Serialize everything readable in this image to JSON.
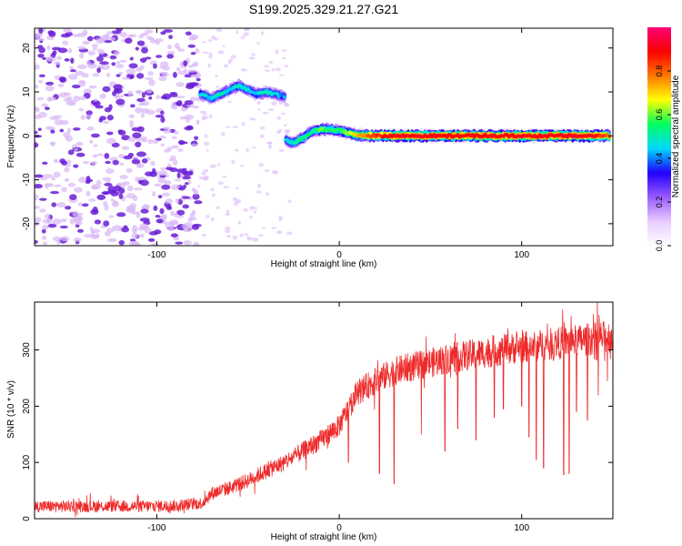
{
  "figure_title": "S199.2025.329.21.27.G21",
  "colors": {
    "snr_line": "#ee2b2b",
    "noise_dark": "#6a1fd6",
    "noise_light": "#d8b8f5",
    "spectrum_stops": [
      "#ffffff",
      "#e8ccff",
      "#9a5bff",
      "#2200ff",
      "#00d8ff",
      "#00ff60",
      "#ffff00",
      "#ff7700",
      "#ff0000",
      "#ff0077"
    ]
  },
  "chart_data": [
    {
      "type": "heatmap",
      "title": "S199.2025.329.21.27.G21",
      "xlabel": "Height of straight line (km)",
      "ylabel": "Frequency (Hz)",
      "xlim": [
        -167,
        150
      ],
      "ylim": [
        -25,
        24.5
      ],
      "x_ticks": [
        -100,
        0,
        100
      ],
      "x_tick_labels": [
        "-100",
        "0",
        "100"
      ],
      "y_ticks": [
        -20,
        -10,
        0,
        10,
        20
      ],
      "y_tick_labels": [
        "-20",
        "-10",
        "0",
        "10",
        "20"
      ],
      "colorbar": {
        "label": "Normalized spectral amplitude",
        "range": [
          0,
          1
        ],
        "ticks": [
          0.0,
          0.2,
          0.4,
          0.6,
          0.8
        ],
        "tick_labels": [
          "0.0",
          "0.2",
          "0.4",
          "0.6",
          "0.8"
        ]
      },
      "signal_track": {
        "x": [
          -76,
          -70,
          -65,
          -60,
          -55,
          -50,
          -45,
          -40,
          -35,
          -30,
          -29,
          -25,
          -20,
          -15,
          -10,
          -5,
          0,
          10,
          20,
          30,
          40,
          50,
          60,
          70,
          80,
          90,
          100,
          110,
          120,
          130,
          140,
          148
        ],
        "y": [
          9.5,
          8.5,
          9.5,
          10.5,
          11.5,
          10.5,
          9.5,
          10.0,
          9.5,
          9.0,
          -1.0,
          -1.5,
          -0.5,
          1.0,
          1.5,
          1.5,
          1.2,
          0.2,
          0,
          0,
          0,
          0,
          0,
          0,
          0,
          0,
          0,
          0,
          0,
          0,
          0,
          0
        ],
        "amplitude": [
          0.45,
          0.45,
          0.5,
          0.45,
          0.5,
          0.45,
          0.45,
          0.5,
          0.45,
          0.4,
          0.45,
          0.5,
          0.55,
          0.5,
          0.6,
          0.55,
          0.55,
          0.7,
          0.85,
          0.9,
          0.9,
          0.9,
          0.9,
          0.9,
          0.9,
          0.9,
          0.9,
          0.9,
          0.9,
          0.9,
          0.9,
          0.8
        ]
      },
      "noise_region_x": [
        -167,
        -77
      ]
    },
    {
      "type": "line",
      "xlabel": "Height of straight line (km)",
      "ylabel": "SNR (10 * v/v)",
      "xlim": [
        -167,
        150
      ],
      "ylim": [
        0,
        385
      ],
      "x_ticks": [
        -100,
        0,
        100
      ],
      "x_tick_labels": [
        "-100",
        "0",
        "100"
      ],
      "y_ticks": [
        0,
        100,
        200,
        300
      ],
      "y_tick_labels": [
        "0",
        "100",
        "200",
        "300"
      ],
      "trend": {
        "x": [
          -167,
          -140,
          -110,
          -90,
          -75,
          -70,
          -60,
          -50,
          -40,
          -30,
          -20,
          -10,
          0,
          10,
          20,
          30,
          40,
          50,
          60,
          70,
          80,
          90,
          100,
          110,
          120,
          130,
          140,
          150
        ],
        "y": [
          22,
          22,
          22,
          23,
          28,
          45,
          55,
          68,
          85,
          100,
          120,
          140,
          165,
          225,
          245,
          262,
          270,
          277,
          285,
          290,
          295,
          300,
          305,
          308,
          312,
          316,
          320,
          325
        ]
      },
      "noise_amplitude": 20,
      "dropouts": [
        {
          "x": 5,
          "y": 100
        },
        {
          "x": 22,
          "y": 80
        },
        {
          "x": 30,
          "y": 62
        },
        {
          "x": 45,
          "y": 150
        },
        {
          "x": 58,
          "y": 120
        },
        {
          "x": 65,
          "y": 160
        },
        {
          "x": 75,
          "y": 140
        },
        {
          "x": 85,
          "y": 180
        },
        {
          "x": 90,
          "y": 195
        },
        {
          "x": 100,
          "y": 200
        },
        {
          "x": 104,
          "y": 145
        },
        {
          "x": 108,
          "y": 105
        },
        {
          "x": 112,
          "y": 90
        },
        {
          "x": 123,
          "y": 78
        },
        {
          "x": 126,
          "y": 80
        },
        {
          "x": 130,
          "y": 190
        },
        {
          "x": 136,
          "y": 175
        },
        {
          "x": 142,
          "y": 220
        },
        {
          "x": 147,
          "y": 245
        }
      ]
    }
  ]
}
